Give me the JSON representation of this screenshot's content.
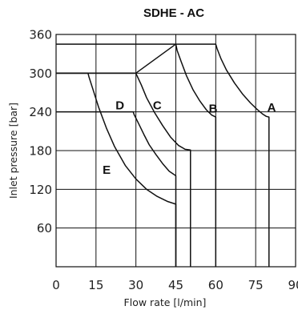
{
  "chart_data": {
    "type": "line",
    "title": "SDHE - AC",
    "xlabel": "Flow rate [l/min]",
    "ylabel": "Inlet pressure [bar]",
    "xlim": [
      0,
      90
    ],
    "ylim": [
      0,
      360
    ],
    "xticks": [
      "0",
      "15",
      "30",
      "45",
      "60",
      "75",
      "90"
    ],
    "yticks": [
      "60",
      "120",
      "180",
      "240",
      "300",
      "360"
    ],
    "x_tick_values": [
      0,
      15,
      30,
      45,
      60,
      75,
      90
    ],
    "y_tick_values": [
      60,
      120,
      180,
      240,
      300,
      360
    ],
    "x_grid_values": [
      0,
      15,
      30,
      45,
      60,
      75,
      90
    ],
    "y_grid_values": [
      0,
      60,
      120,
      180,
      240,
      300,
      360
    ],
    "grid": true,
    "line_color": "#111111",
    "series": [
      {
        "name": "A",
        "label_at": [
          81,
          247
        ],
        "x": [
          0,
          60,
          60.5,
          62,
          64,
          67,
          70,
          73,
          75.5,
          77.5,
          79,
          80,
          80
        ],
        "y": [
          345,
          345,
          338,
          322,
          305,
          285,
          268,
          254,
          244,
          237,
          233,
          232,
          0
        ]
      },
      {
        "name": "B",
        "label_at": [
          59,
          245
        ],
        "x": [
          0,
          30,
          45,
          45.5,
          47,
          49,
          51.5,
          54,
          56.5,
          58.5,
          60,
          60
        ],
        "y": [
          300,
          300,
          345,
          335,
          318,
          296,
          274,
          257,
          243,
          235,
          232,
          0
        ]
      },
      {
        "name": "C",
        "label_at": [
          38,
          250
        ],
        "x": [
          0,
          30,
          30.3,
          32,
          34,
          37,
          40,
          43,
          46,
          48.5,
          50.5,
          50.5
        ],
        "y": [
          300,
          300,
          297,
          282,
          262,
          239,
          219,
          201,
          188,
          182,
          181,
          0
        ]
      },
      {
        "name": "D",
        "label_at": [
          24,
          250
        ],
        "x": [
          0,
          29,
          29.3,
          31,
          33,
          35,
          37.5,
          40,
          42.5,
          45,
          45
        ],
        "y": [
          240,
          240,
          236,
          222,
          205,
          189,
          174,
          160,
          148,
          141,
          0
        ]
      },
      {
        "name": "E",
        "label_at": [
          19,
          150
        ],
        "x": [
          0,
          12,
          12.3,
          14,
          16,
          19,
          22,
          26,
          30,
          34,
          38,
          42,
          45,
          45
        ],
        "y": [
          300,
          300,
          295,
          273,
          247,
          214,
          186,
          157,
          136,
          120,
          109,
          101,
          97,
          0
        ]
      }
    ]
  }
}
